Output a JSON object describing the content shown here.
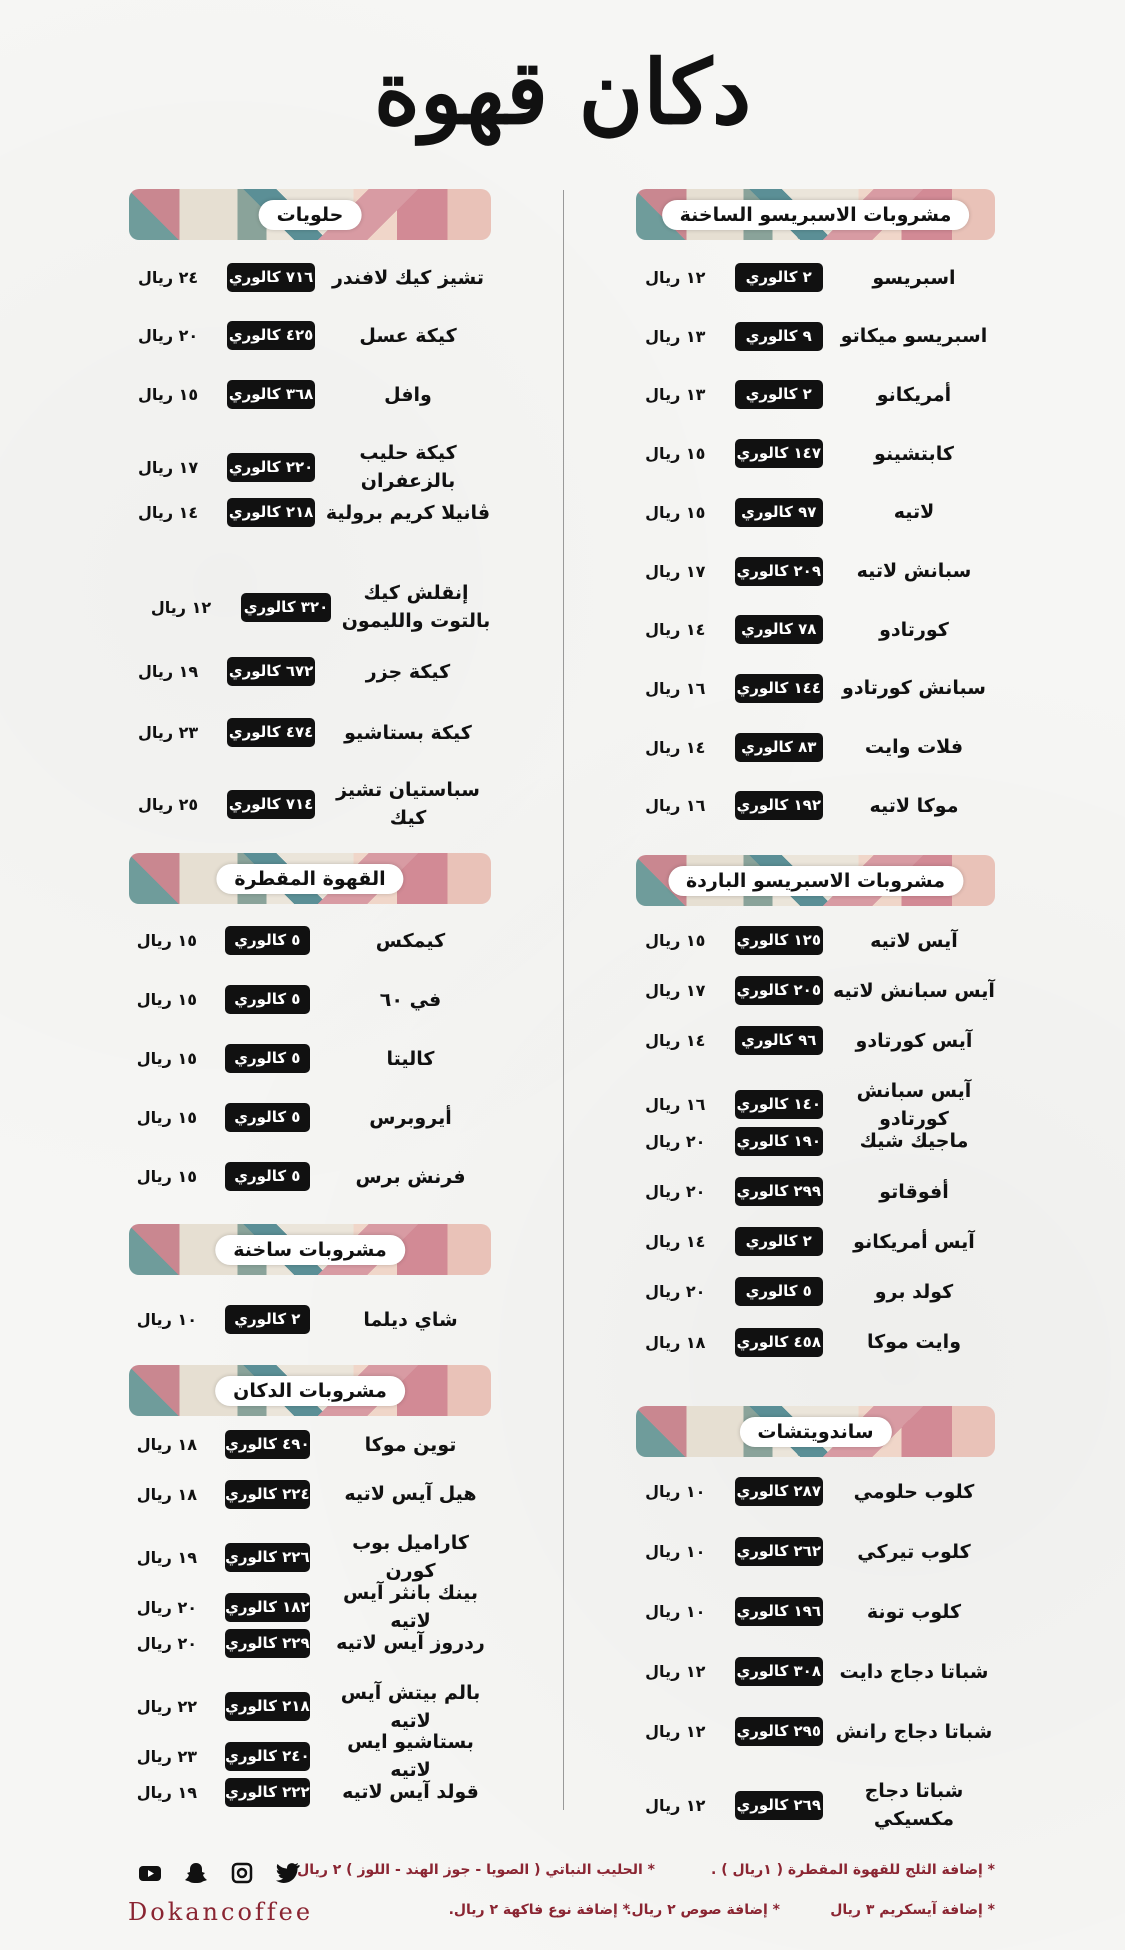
{
  "logo": {
    "text": "دكان قهوة"
  },
  "columns": {
    "right": [
      {
        "title": "مشروبات الاسبريسو الساخنة",
        "items": [
          {
            "name": "اسبريسو",
            "calories": "٢ كالوري",
            "price": "١٢ ريال"
          },
          {
            "name": "اسبريسو ميكاتو",
            "calories": "٩ كالوري",
            "price": "١٣ ريال"
          },
          {
            "name": "أمريكانو",
            "calories": "٢ كالوري",
            "price": "١٣ ريال"
          },
          {
            "name": "كابتشينو",
            "calories": "١٤٧ كالوري",
            "price": "١٥ ريال"
          },
          {
            "name": "لاتيه",
            "calories": "٩٧ كالوري",
            "price": "١٥ ريال"
          },
          {
            "name": "سبانش لاتيه",
            "calories": "٢٠٩ كالوري",
            "price": "١٧ ريال"
          },
          {
            "name": "كورتادو",
            "calories": "٧٨ كالوري",
            "price": "١٤ ريال"
          },
          {
            "name": "سبانش كورتادو",
            "calories": "١٤٤ كالوري",
            "price": "١٦ ريال"
          },
          {
            "name": "فلات وايت",
            "calories": "٨٣ كالوري",
            "price": "١٤ ريال"
          },
          {
            "name": "موكا لاتيه",
            "calories": "١٩٢ كالوري",
            "price": "١٦ ريال"
          }
        ]
      },
      {
        "title": "مشروبات الاسبريسو الباردة",
        "items": [
          {
            "name": "آيس لاتيه",
            "calories": "١٢٥ كالوري",
            "price": "١٥ ريال"
          },
          {
            "name": "آيس سبانش لاتيه",
            "calories": "٢٠٥ كالوري",
            "price": "١٧ ريال"
          },
          {
            "name": "آيس كورتادو",
            "calories": "٩٦ كالوري",
            "price": "١٤ ريال"
          },
          {
            "name": "آيس سبانش كورتادو",
            "calories": "١٤٠ كالوري",
            "price": "١٦ ريال"
          },
          {
            "name": "ماجيك شيك",
            "calories": "١٩٠ كالوري",
            "price": "٢٠ ريال"
          },
          {
            "name": "أفوقاتو",
            "calories": "٢٩٩ كالوري",
            "price": "٢٠ ريال"
          },
          {
            "name": "آيس أمريكانو",
            "calories": "٢ كالوري",
            "price": "١٤ ريال"
          },
          {
            "name": "كولد برو",
            "calories": "٥ كالوري",
            "price": "٢٠ ريال"
          },
          {
            "name": "وايت موكا",
            "calories": "٤٥٨ كالوري",
            "price": "١٨ ريال"
          }
        ]
      },
      {
        "title": "ساندويتشات",
        "items": [
          {
            "name": "كلوب حلومي",
            "calories": "٢٨٧ كالوري",
            "price": "١٠ ريال"
          },
          {
            "name": "كلوب تيركي",
            "calories": "٢٦٢ كالوري",
            "price": "١٠ ريال"
          },
          {
            "name": "كلوب تونة",
            "calories": "١٩٦ كالوري",
            "price": "١٠ ريال"
          },
          {
            "name": "شباتا دجاج دايت",
            "calories": "٣٠٨ كالوري",
            "price": "١٢ ريال"
          },
          {
            "name": "شباتا دجاج رانش",
            "calories": "٢٩٥ كالوري",
            "price": "١٢ ريال"
          },
          {
            "name": "شباتا دجاج مكسيكي",
            "calories": "٢٦٩ كالوري",
            "price": "١٢ ريال"
          }
        ]
      }
    ],
    "left": [
      {
        "title": "حلويات",
        "items": [
          {
            "name": "تشيز كيك لافندر",
            "calories": "٧١٦ كالوري",
            "price": "٢٤ ريال"
          },
          {
            "name": "كيكة عسل",
            "calories": "٤٢٥ كالوري",
            "price": "٢٠ ريال"
          },
          {
            "name": "وافل",
            "calories": "٣٦٨ كالوري",
            "price": "١٥ ريال"
          },
          {
            "name": "كيكة حليب بالزعفران",
            "calories": "٢٢٠ كالوري",
            "price": "١٧ ريال"
          },
          {
            "name": "ڤانيلا كريم برولية",
            "calories": "٢١٨ كالوري",
            "price": "١٤ ريال"
          },
          {
            "name": "إنقلش كيك بالتوت والليمون",
            "calories": "٣٢٠ كالوري",
            "price": "١٢ ريال"
          },
          {
            "name": "كيكة جزر",
            "calories": "٦٧٢ كالوري",
            "price": "١٩ ريال"
          },
          {
            "name": "كيكة بستاشيو",
            "calories": "٤٧٤ كالوري",
            "price": "٢٣ ريال"
          },
          {
            "name": "سباستيان تشيز كيك",
            "calories": "٧١٤ كالوري",
            "price": "٢٥ ريال"
          }
        ]
      },
      {
        "title": "القهوة المقطرة",
        "items": [
          {
            "name": "كيمكس",
            "calories": "٥ كالوري",
            "price": "١٥ ريال"
          },
          {
            "name": "في ٦٠",
            "calories": "٥ كالوري",
            "price": "١٥ ريال"
          },
          {
            "name": "كاليتا",
            "calories": "٥ كالوري",
            "price": "١٥ ريال"
          },
          {
            "name": "أيروبرس",
            "calories": "٥ كالوري",
            "price": "١٥ ريال"
          },
          {
            "name": "فرنش برس",
            "calories": "٥ كالوري",
            "price": "١٥ ريال"
          }
        ]
      },
      {
        "title": "مشروبات ساخنة",
        "items": [
          {
            "name": "شاي ديلما",
            "calories": "٢ كالوري",
            "price": "١٠ ريال"
          }
        ]
      },
      {
        "title": "مشروبات الدكان",
        "items": [
          {
            "name": "توين موكا",
            "calories": "٤٩٠ كالوري",
            "price": "١٨ ريال"
          },
          {
            "name": "هيل آيس لاتيه",
            "calories": "٢٢٤ كالوري",
            "price": "١٨ ريال"
          },
          {
            "name": "كاراميل بوب كورن",
            "calories": "٢٢٦ كالوري",
            "price": "١٩ ريال"
          },
          {
            "name": "بينك بانثر آيس لاتيه",
            "calories": "١٨٢ كالوري",
            "price": "٢٠ ريال"
          },
          {
            "name": "ردروز آيس لاتيه",
            "calories": "٢٢٩ كالوري",
            "price": "٢٠ ريال"
          },
          {
            "name": "بالم بيتش آيس لاتيه",
            "calories": "٢١٨ كالوري",
            "price": "٢٢ ريال"
          },
          {
            "name": "بستاشيو ايس لاتيه",
            "calories": "٢٤٠ كالوري",
            "price": "٢٣ ريال"
          },
          {
            "name": "قولد آيس لاتيه",
            "calories": "٢٢٢ كالوري",
            "price": "١٩ ريال"
          }
        ]
      }
    ]
  },
  "footer": {
    "notes": [
      "* إضافة الثلج للقهوة المقطرة ( ١ريال ) .",
      "* الحليب النباتي ( الصويا - جوز الهند - اللوز ) ٢ ريال.",
      "* إضافة آيسكريم ٣ ريال",
      "* إضافة صوص ٢ ريال.",
      "* إضافة نوع فاكهة ٢ ريال."
    ],
    "brand": "Dokancoffee",
    "social_icons": [
      "youtube-icon",
      "snapchat-icon",
      "instagram-icon",
      "twitter-icon"
    ]
  },
  "colors": {
    "accent": "#8a2532",
    "badge": "#111111",
    "logo_dot": "#b02a3a"
  }
}
